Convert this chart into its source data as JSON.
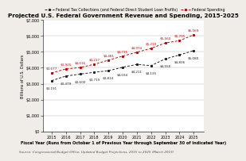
{
  "title": "Projected U.S. Federal Government Revenue and Spending, 2015-2025",
  "source": "Source: Congressional Budget Office, Updated Budget Projections, 2015 to 2025 (March 2015)",
  "xlabel": "Fiscal Year (Runs from October 1 of Previous Year through September 30 of Indicated Year)",
  "ylabel": "Billions of U.S. Dollars",
  "legend_tax": "Federal Tax Collections (and Federal Direct Student Loan Profits)",
  "legend_spending": "Federal Spending",
  "years": [
    2015,
    2016,
    2017,
    2018,
    2019,
    2020,
    2021,
    2022,
    2023,
    2024,
    2025
  ],
  "tax": [
    3191,
    3479,
    3600,
    3719,
    3814,
    4034,
    4211,
    4135,
    4556,
    4806,
    5080
  ],
  "spending": [
    3677,
    3925,
    4016,
    4217,
    4481,
    4735,
    4974,
    5219,
    5560,
    5705,
    6069
  ],
  "tax_labels": [
    "$3,191",
    "$3,479",
    "$3,600",
    "$3,719",
    "$3,814",
    "$4,034",
    "$4,211",
    "$4,135",
    "$4,556",
    "$4,806",
    "$5,080"
  ],
  "spending_labels": [
    "$3,677",
    "$3,925",
    "$4,016",
    "$4,217",
    "$4,481",
    "$4,735",
    "$4,974",
    "$5,219",
    "$5,560",
    "$5,705",
    "$6,069"
  ],
  "ylim": [
    0,
    7000
  ],
  "yticks": [
    0,
    1000,
    2000,
    3000,
    4000,
    5000,
    6000,
    7000
  ],
  "tax_color": "#222222",
  "spending_color": "#cc0000",
  "bg_color": "#f0ede8",
  "plot_bg": "#ffffff",
  "grid_color": "#bbbbbb",
  "title_fontsize": 5.2,
  "axis_label_fontsize": 3.6,
  "tick_fontsize": 3.5,
  "annot_fontsize": 3.0,
  "legend_fontsize": 3.4,
  "source_fontsize": 3.0
}
